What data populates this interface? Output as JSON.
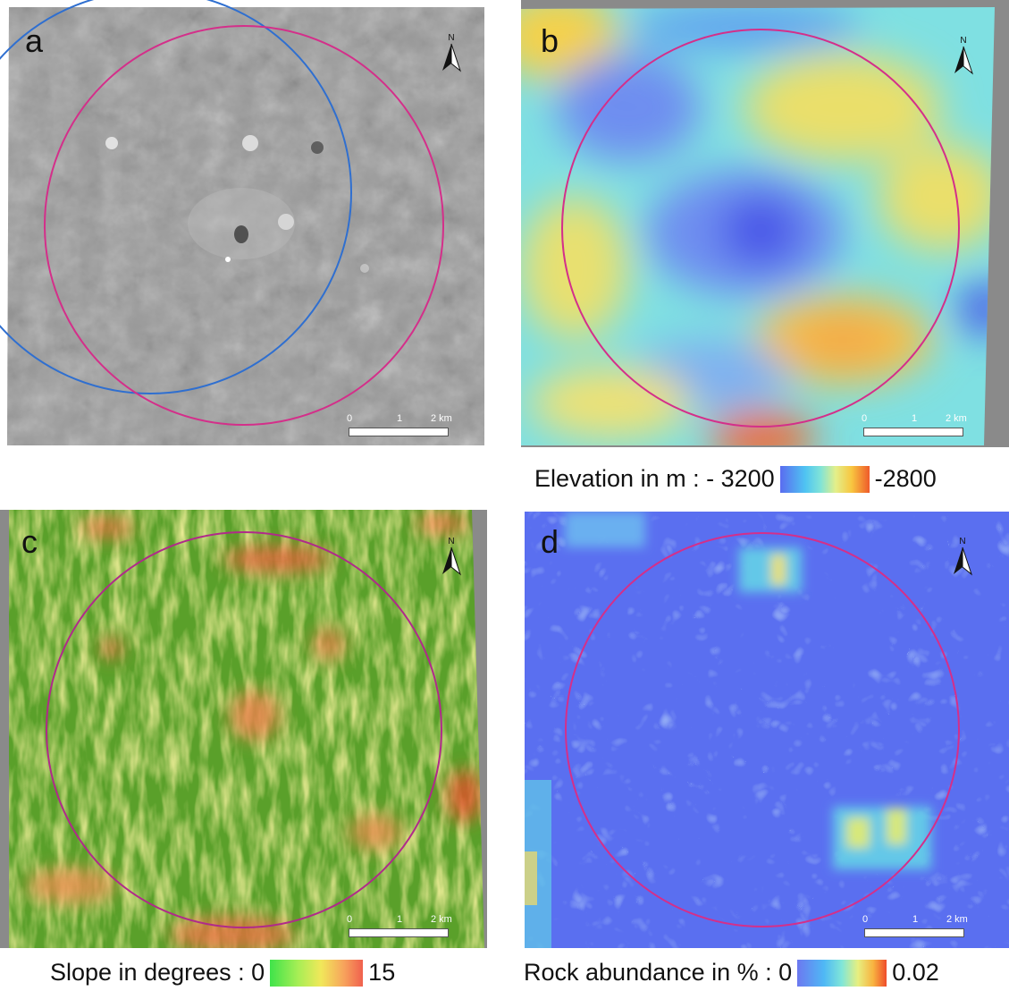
{
  "panels": [
    {
      "label": "a",
      "north": "N",
      "scale_ticks": [
        "0",
        "1",
        "2 km"
      ]
    },
    {
      "label": "b",
      "north": "N",
      "scale_ticks": [
        "0",
        "1",
        "2 km"
      ]
    },
    {
      "label": "c",
      "north": "N",
      "scale_ticks": [
        "0",
        "1",
        "2 km"
      ]
    },
    {
      "label": "d",
      "north": "N",
      "scale_ticks": [
        "0",
        "1",
        "2 km"
      ]
    }
  ],
  "legends": {
    "elevation": {
      "prefix": "Elevation in m : - 3200",
      "max": "-2800"
    },
    "slope": {
      "prefix": "Slope in degrees : 0",
      "max": "15"
    },
    "rock": {
      "prefix": "Rock abundance in % : 0",
      "max": "0.02"
    }
  },
  "colors": {
    "study_circle": "#d42f8a",
    "secondary_circle": "#2f6fd0"
  }
}
